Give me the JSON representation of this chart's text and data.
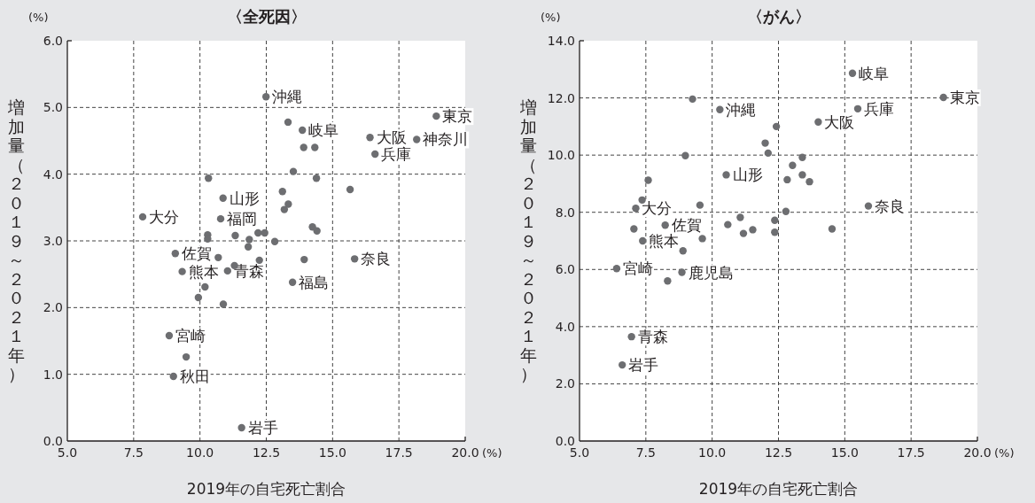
{
  "chart_data": [
    {
      "type": "scatter",
      "title": "〈全死因〉",
      "xlabel": "2019年の自宅死亡割合",
      "ylabel": "増加量（２０１９～２０２１年）",
      "xlim": [
        5,
        20
      ],
      "ylim": [
        0,
        6
      ],
      "xticks": [
        {
          "value": 5,
          "label": "5.0"
        },
        {
          "value": 7.5,
          "label": "7.5"
        },
        {
          "value": 10,
          "label": "10.0"
        },
        {
          "value": 12.5,
          "label": "12.5"
        },
        {
          "value": 15,
          "label": "15.0"
        },
        {
          "value": 17.5,
          "label": "17.5"
        },
        {
          "value": 20,
          "label": "20.0"
        }
      ],
      "yticks": [
        {
          "value": 0,
          "label": "0.0"
        },
        {
          "value": 1,
          "label": "1.0"
        },
        {
          "value": 2,
          "label": "2.0"
        },
        {
          "value": 3,
          "label": "3.0"
        },
        {
          "value": 4,
          "label": "4.0"
        },
        {
          "value": 5,
          "label": "5.0"
        },
        {
          "value": 6,
          "label": "6.0"
        }
      ],
      "grid": true,
      "marker": "circle",
      "series": [
        {
          "color": "#6d6e71",
          "x": [
            12.49,
            18.91,
            13.32,
            13.86,
            16.41,
            18.17,
            13.91,
            14.33,
            16.6,
            13.52,
            10.32,
            14.39,
            15.66,
            13.11,
            10.87,
            13.33,
            13.18,
            7.84,
            10.78,
            14.24,
            14.41,
            12.19,
            12.44,
            10.29,
            10.29,
            11.33,
            11.86,
            12.82,
            11.82,
            9.07,
            10.69,
            12.24,
            13.93,
            15.83,
            9.33,
            11.04,
            11.3,
            13.49,
            10.19,
            9.94,
            10.88,
            8.84,
            9.48,
            9.0,
            11.57
          ],
          "values": [
            5.16,
            4.87,
            4.78,
            4.66,
            4.55,
            4.52,
            4.4,
            4.4,
            4.3,
            4.04,
            3.94,
            3.94,
            3.77,
            3.74,
            3.64,
            3.55,
            3.47,
            3.36,
            3.33,
            3.21,
            3.15,
            3.12,
            3.12,
            3.09,
            3.03,
            3.08,
            3.02,
            2.99,
            2.91,
            2.81,
            2.75,
            2.71,
            2.72,
            2.73,
            2.54,
            2.55,
            2.63,
            2.38,
            2.31,
            2.15,
            2.05,
            1.58,
            1.26,
            0.97,
            0.2
          ]
        }
      ],
      "annotations": [
        "(%)",
        "(%)",
        {
          "text": "沖縄",
          "x": 12.49,
          "y": 5.16
        },
        {
          "text": "東京",
          "x": 18.91,
          "y": 4.87
        },
        {
          "text": "岐阜",
          "x": 13.86,
          "y": 4.66
        },
        {
          "text": "大阪",
          "x": 16.41,
          "y": 4.55
        },
        {
          "text": "神奈川",
          "x": 18.17,
          "y": 4.52
        },
        {
          "text": "兵庫",
          "x": 16.6,
          "y": 4.3
        },
        {
          "text": "山形",
          "x": 10.87,
          "y": 3.64
        },
        {
          "text": "大分",
          "x": 7.84,
          "y": 3.36
        },
        {
          "text": "福岡",
          "x": 10.78,
          "y": 3.33
        },
        {
          "text": "佐賀",
          "x": 9.07,
          "y": 2.81
        },
        {
          "text": "奈良",
          "x": 15.83,
          "y": 2.73
        },
        {
          "text": "熊本",
          "x": 9.33,
          "y": 2.54
        },
        {
          "text": "青森",
          "x": 11.04,
          "y": 2.55
        },
        {
          "text": "福島",
          "x": 13.49,
          "y": 2.38
        },
        {
          "text": "宮崎",
          "x": 8.84,
          "y": 1.58
        },
        {
          "text": "秋田",
          "x": 9.0,
          "y": 0.97
        },
        {
          "text": "岩手",
          "x": 11.57,
          "y": 0.2
        }
      ]
    },
    {
      "type": "scatter",
      "title": "〈がん〉",
      "xlabel": "2019年の自宅死亡割合",
      "ylabel": "増加量（２０１９～２０２１年）",
      "xlim": [
        5,
        20
      ],
      "ylim": [
        0,
        14
      ],
      "xticks": [
        {
          "value": 5,
          "label": "5.0"
        },
        {
          "value": 7.5,
          "label": "7.5"
        },
        {
          "value": 10,
          "label": "10.0"
        },
        {
          "value": 12.5,
          "label": "12.5"
        },
        {
          "value": 15,
          "label": "15.0"
        },
        {
          "value": 17.5,
          "label": "17.5"
        },
        {
          "value": 20,
          "label": "20.0"
        }
      ],
      "yticks": [
        {
          "value": 0,
          "label": "0.0"
        },
        {
          "value": 2,
          "label": "2.0"
        },
        {
          "value": 4,
          "label": "4.0"
        },
        {
          "value": 6,
          "label": "6.0"
        },
        {
          "value": 8,
          "label": "8.0"
        },
        {
          "value": 10,
          "label": "10.0"
        },
        {
          "value": 12,
          "label": "12.0"
        },
        {
          "value": 14,
          "label": "14.0"
        }
      ],
      "grid": true,
      "marker": "circle",
      "series": [
        {
          "color": "#6d6e71",
          "x": [
            15.29,
            18.72,
            9.26,
            15.49,
            10.29,
            14.0,
            12.42,
            12.0,
            12.11,
            8.99,
            13.4,
            13.03,
            10.53,
            13.4,
            12.83,
            13.67,
            7.59,
            7.36,
            7.12,
            9.54,
            15.89,
            12.78,
            11.06,
            8.23,
            10.59,
            12.36,
            7.05,
            14.52,
            11.18,
            11.53,
            12.36,
            9.63,
            7.38,
            8.9,
            6.4,
            8.86,
            8.32,
            6.96,
            6.61
          ],
          "values": [
            12.86,
            12.02,
            11.96,
            11.62,
            11.59,
            11.16,
            11.0,
            10.42,
            10.07,
            9.98,
            9.92,
            9.64,
            9.31,
            9.31,
            9.14,
            9.07,
            9.12,
            8.43,
            8.14,
            8.25,
            8.22,
            8.03,
            7.82,
            7.55,
            7.57,
            7.72,
            7.42,
            7.42,
            7.26,
            7.39,
            7.3,
            7.08,
            7.0,
            6.65,
            6.03,
            5.9,
            5.6,
            3.65,
            2.66
          ]
        }
      ],
      "annotations": [
        "(%)",
        "(%)",
        {
          "text": "岐阜",
          "x": 15.29,
          "y": 12.86
        },
        {
          "text": "東京",
          "x": 18.72,
          "y": 12.02
        },
        {
          "text": "兵庫",
          "x": 15.49,
          "y": 11.62
        },
        {
          "text": "沖縄",
          "x": 10.29,
          "y": 11.59
        },
        {
          "text": "大阪",
          "x": 14.0,
          "y": 11.16
        },
        {
          "text": "山形",
          "x": 10.53,
          "y": 9.31
        },
        {
          "text": "大分",
          "x": 7.12,
          "y": 8.14
        },
        {
          "text": "奈良",
          "x": 15.89,
          "y": 8.22
        },
        {
          "text": "佐賀",
          "x": 8.23,
          "y": 7.55
        },
        {
          "text": "熊本",
          "x": 7.38,
          "y": 7.0
        },
        {
          "text": "宮崎",
          "x": 6.4,
          "y": 6.03
        },
        {
          "text": "鹿児島",
          "x": 8.86,
          "y": 5.9
        },
        {
          "text": "青森",
          "x": 6.96,
          "y": 3.65
        },
        {
          "text": "岩手",
          "x": 6.61,
          "y": 2.66
        }
      ]
    }
  ]
}
